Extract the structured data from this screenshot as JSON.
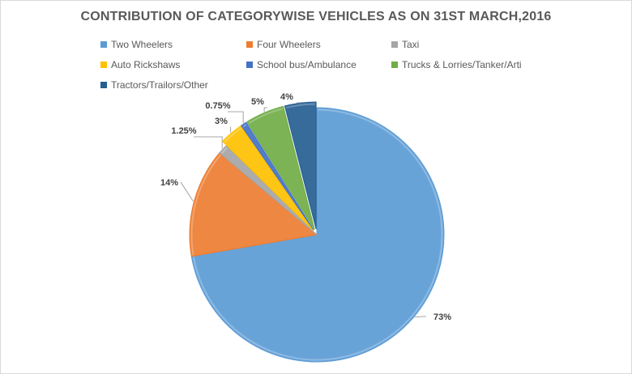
{
  "chart_data": {
    "type": "pie",
    "title": "CONTRIBUTION OF CATEGORYWISE VEHICLES AS ON 31ST MARCH,2016",
    "legend_position": "top",
    "slices": [
      {
        "name": "Two Wheelers",
        "value": 73,
        "label": "73%",
        "color": "#5b9bd5"
      },
      {
        "name": "Four Wheelers",
        "value": 14,
        "label": "14%",
        "color": "#ed7d31"
      },
      {
        "name": "Taxi",
        "value": 1.25,
        "label": "1.25%",
        "color": "#a5a5a5"
      },
      {
        "name": "Auto Rickshaws",
        "value": 3,
        "label": "3%",
        "color": "#ffc000"
      },
      {
        "name": "School bus/Ambulance",
        "value": 0.75,
        "label": "0.75%",
        "color": "#4472c4"
      },
      {
        "name": "Trucks & Lorries/Tanker/Arti",
        "value": 5,
        "label": "5%",
        "color": "#70ad47"
      },
      {
        "name": "Tractors/Trailors/Other",
        "value": 4,
        "label": "4%",
        "color": "#255e91"
      }
    ]
  }
}
